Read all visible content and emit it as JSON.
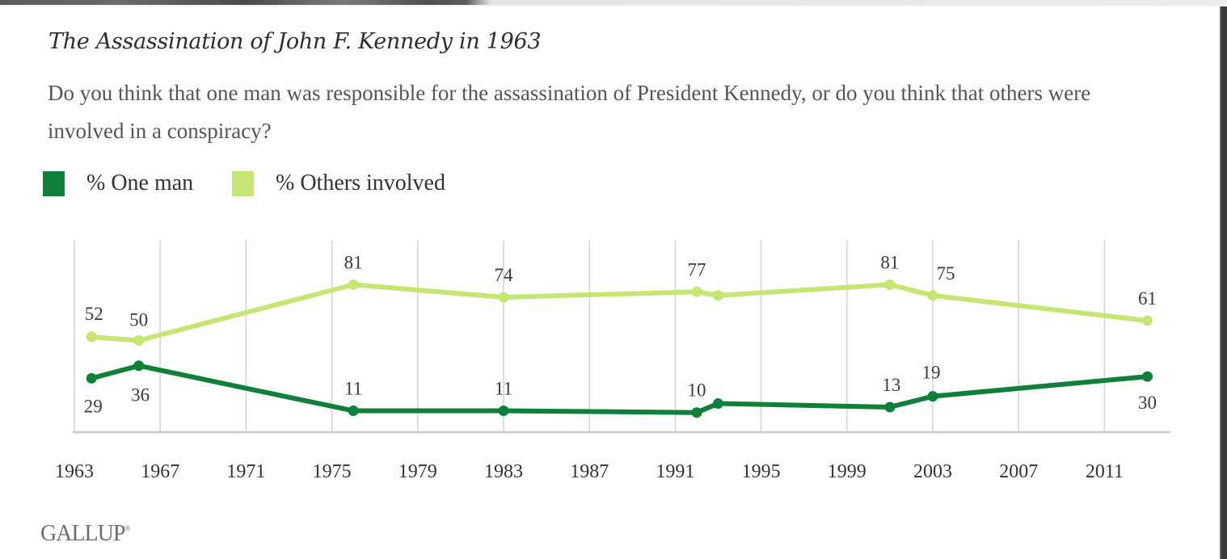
{
  "header": {
    "title": "The Assassination of John F. Kennedy in 1963",
    "question": "Do you think that one man was responsible for the assassination of President Kennedy, or do you think that others were involved in a conspiracy?"
  },
  "logo": {
    "text": "GALLUP",
    "mark": "®"
  },
  "chart_data": {
    "type": "line",
    "title": "The Assassination of John F. Kennedy in 1963",
    "subtitle": "Do you think that one man was responsible for the assassination of President Kennedy, or do you think that others were involved in a conspiracy?",
    "xlabel": "",
    "ylabel": "",
    "xlim": [
      1963,
      2014
    ],
    "ylim": [
      0,
      100
    ],
    "x_ticks": [
      1963,
      1967,
      1971,
      1975,
      1979,
      1983,
      1987,
      1991,
      1995,
      1999,
      2003,
      2007,
      2011
    ],
    "x_tick_labels": [
      "1963",
      "1967",
      "1971",
      "1975",
      "1979",
      "1983",
      "1987",
      "1991",
      "1995",
      "1999",
      "2003",
      "2007",
      "2011"
    ],
    "grid": "vertical",
    "legend_position": "top-left",
    "x": [
      1963.8,
      1966,
      1976,
      1983,
      1992,
      1993,
      2001,
      2003,
      2013
    ],
    "series": [
      {
        "name": "% One man",
        "color": "#0f7f3c",
        "values": [
          29,
          36,
          11,
          11,
          10,
          15,
          13,
          19,
          30
        ],
        "labels": [
          "29",
          "36",
          "11",
          "11",
          "10",
          "",
          "13",
          "19",
          "30"
        ],
        "label_side": [
          "below",
          "below",
          "above",
          "above",
          "above",
          "",
          "above",
          "above",
          "below"
        ]
      },
      {
        "name": "% Others involved",
        "color": "#c5e673",
        "values": [
          52,
          50,
          81,
          74,
          77,
          75,
          81,
          75,
          61
        ],
        "labels": [
          "52",
          "50",
          "81",
          "74",
          "77",
          "",
          "81",
          "75",
          "61"
        ],
        "label_side": [
          "above",
          "above",
          "above",
          "above",
          "above",
          "",
          "above",
          "above",
          "above"
        ]
      }
    ]
  }
}
